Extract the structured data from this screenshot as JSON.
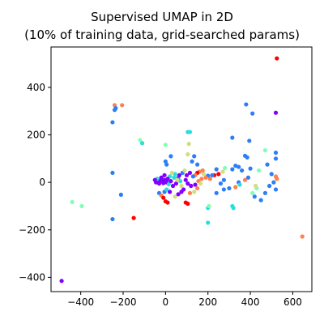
{
  "chart_data": {
    "type": "scatter",
    "title_lines": [
      "Supervised UMAP in 2D",
      "(10% of training data, grid-searched params)"
    ],
    "xlabel": "",
    "ylabel": "",
    "xlim": [
      -540,
      690
    ],
    "ylim": [
      -460,
      570
    ],
    "xticks": [
      -400,
      -200,
      0,
      200,
      400,
      600
    ],
    "yticks": [
      -400,
      -200,
      0,
      200,
      400
    ],
    "grid": false,
    "legend": "none",
    "colors": {
      "purple": "#8000ff",
      "blue": "#2c7ef7",
      "cyan": "#2adddd",
      "mint": "#80ffb4",
      "lime": "#d4dd80",
      "orange": "#ff7f50",
      "red": "#ff0000"
    },
    "points": [
      {
        "x": 525,
        "y": 522,
        "c": "red"
      },
      {
        "x": 520,
        "y": 293,
        "c": "purple"
      },
      {
        "x": 645,
        "y": -228,
        "c": "orange"
      },
      {
        "x": -490,
        "y": -415,
        "c": "purple"
      },
      {
        "x": -240,
        "y": 325,
        "c": "orange"
      },
      {
        "x": -205,
        "y": 325,
        "c": "orange"
      },
      {
        "x": -235,
        "y": 312,
        "c": "blue"
      },
      {
        "x": -240,
        "y": 305,
        "c": "blue"
      },
      {
        "x": -250,
        "y": 253,
        "c": "blue"
      },
      {
        "x": -250,
        "y": 40,
        "c": "blue"
      },
      {
        "x": -210,
        "y": -52,
        "c": "blue"
      },
      {
        "x": -250,
        "y": -155,
        "c": "blue"
      },
      {
        "x": -150,
        "y": -150,
        "c": "red"
      },
      {
        "x": -440,
        "y": -83,
        "c": "mint"
      },
      {
        "x": -395,
        "y": -100,
        "c": "mint"
      },
      {
        "x": -120,
        "y": 178,
        "c": "mint"
      },
      {
        "x": -110,
        "y": 165,
        "c": "cyan"
      },
      {
        "x": 0,
        "y": 158,
        "c": "mint"
      },
      {
        "x": 115,
        "y": 212,
        "c": "cyan"
      },
      {
        "x": 105,
        "y": 212,
        "c": "cyan"
      },
      {
        "x": 110,
        "y": 162,
        "c": "lime"
      },
      {
        "x": 105,
        "y": 118,
        "c": "lime"
      },
      {
        "x": 25,
        "y": 110,
        "c": "blue"
      },
      {
        "x": 135,
        "y": 110,
        "c": "blue"
      },
      {
        "x": 0,
        "y": 88,
        "c": "blue"
      },
      {
        "x": 5,
        "y": 75,
        "c": "blue"
      },
      {
        "x": 150,
        "y": 75,
        "c": "blue"
      },
      {
        "x": 125,
        "y": 88,
        "c": "blue"
      },
      {
        "x": 380,
        "y": 328,
        "c": "blue"
      },
      {
        "x": 410,
        "y": 290,
        "c": "blue"
      },
      {
        "x": 315,
        "y": 188,
        "c": "blue"
      },
      {
        "x": 395,
        "y": 175,
        "c": "blue"
      },
      {
        "x": 375,
        "y": 112,
        "c": "blue"
      },
      {
        "x": 385,
        "y": 105,
        "c": "blue"
      },
      {
        "x": 470,
        "y": 135,
        "c": "mint"
      },
      {
        "x": 520,
        "y": 125,
        "c": "blue"
      },
      {
        "x": 520,
        "y": 100,
        "c": "blue"
      },
      {
        "x": 345,
        "y": 65,
        "c": "blue"
      },
      {
        "x": 315,
        "y": 55,
        "c": "blue"
      },
      {
        "x": 330,
        "y": 70,
        "c": "blue"
      },
      {
        "x": 360,
        "y": 50,
        "c": "blue"
      },
      {
        "x": 400,
        "y": 58,
        "c": "blue"
      },
      {
        "x": 440,
        "y": 50,
        "c": "mint"
      },
      {
        "x": 480,
        "y": 75,
        "c": "blue"
      },
      {
        "x": 500,
        "y": 35,
        "c": "blue"
      },
      {
        "x": 520,
        "y": 25,
        "c": "orange"
      },
      {
        "x": 525,
        "y": 15,
        "c": "orange"
      },
      {
        "x": 510,
        "y": 0,
        "c": "blue"
      },
      {
        "x": 490,
        "y": -15,
        "c": "blue"
      },
      {
        "x": 520,
        "y": -30,
        "c": "blue"
      },
      {
        "x": 470,
        "y": -45,
        "c": "blue"
      },
      {
        "x": 450,
        "y": -75,
        "c": "blue"
      },
      {
        "x": 420,
        "y": -60,
        "c": "blue"
      },
      {
        "x": 410,
        "y": -45,
        "c": "mint"
      },
      {
        "x": 430,
        "y": -25,
        "c": "mint"
      },
      {
        "x": 425,
        "y": -15,
        "c": "lime"
      },
      {
        "x": 390,
        "y": 20,
        "c": "blue"
      },
      {
        "x": 375,
        "y": 10,
        "c": "orange"
      },
      {
        "x": 345,
        "y": 0,
        "c": "blue"
      },
      {
        "x": 350,
        "y": -10,
        "c": "cyan"
      },
      {
        "x": 330,
        "y": -20,
        "c": "orange"
      },
      {
        "x": 300,
        "y": -25,
        "c": "blue"
      },
      {
        "x": 260,
        "y": -5,
        "c": "blue"
      },
      {
        "x": 275,
        "y": 10,
        "c": "blue"
      },
      {
        "x": 270,
        "y": 45,
        "c": "lime"
      },
      {
        "x": 280,
        "y": 60,
        "c": "mint"
      },
      {
        "x": 240,
        "y": 55,
        "c": "blue"
      },
      {
        "x": 250,
        "y": 35,
        "c": "red"
      },
      {
        "x": 230,
        "y": 30,
        "c": "red"
      },
      {
        "x": 220,
        "y": 30,
        "c": "blue"
      },
      {
        "x": 200,
        "y": 28,
        "c": "blue"
      },
      {
        "x": 210,
        "y": 15,
        "c": "orange"
      },
      {
        "x": 190,
        "y": 20,
        "c": "orange"
      },
      {
        "x": 180,
        "y": 35,
        "c": "lime"
      },
      {
        "x": 175,
        "y": 50,
        "c": "orange"
      },
      {
        "x": 160,
        "y": 45,
        "c": "orange"
      },
      {
        "x": 150,
        "y": 40,
        "c": "red"
      },
      {
        "x": 140,
        "y": 30,
        "c": "orange"
      },
      {
        "x": 130,
        "y": 25,
        "c": "blue"
      },
      {
        "x": 115,
        "y": 40,
        "c": "purple"
      },
      {
        "x": 100,
        "y": 30,
        "c": "purple"
      },
      {
        "x": 95,
        "y": 10,
        "c": "purple"
      },
      {
        "x": 105,
        "y": -5,
        "c": "purple"
      },
      {
        "x": 120,
        "y": -15,
        "c": "purple"
      },
      {
        "x": 140,
        "y": -10,
        "c": "purple"
      },
      {
        "x": 155,
        "y": 5,
        "c": "orange"
      },
      {
        "x": 170,
        "y": 15,
        "c": "orange"
      },
      {
        "x": 165,
        "y": -5,
        "c": "lime"
      },
      {
        "x": 150,
        "y": -25,
        "c": "orange"
      },
      {
        "x": 135,
        "y": -40,
        "c": "lime"
      },
      {
        "x": 115,
        "y": -45,
        "c": "orange"
      },
      {
        "x": 85,
        "y": -30,
        "c": "purple"
      },
      {
        "x": 75,
        "y": -15,
        "c": "lime"
      },
      {
        "x": 70,
        "y": 5,
        "c": "cyan"
      },
      {
        "x": 60,
        "y": 20,
        "c": "blue"
      },
      {
        "x": 45,
        "y": 35,
        "c": "cyan"
      },
      {
        "x": 30,
        "y": 40,
        "c": "lime"
      },
      {
        "x": 20,
        "y": 25,
        "c": "cyan"
      },
      {
        "x": 10,
        "y": 15,
        "c": "purple"
      },
      {
        "x": -5,
        "y": 10,
        "c": "purple"
      },
      {
        "x": -15,
        "y": 5,
        "c": "purple"
      },
      {
        "x": -25,
        "y": 8,
        "c": "purple"
      },
      {
        "x": -35,
        "y": 3,
        "c": "purple"
      },
      {
        "x": -45,
        "y": 0,
        "c": "purple"
      },
      {
        "x": -30,
        "y": -5,
        "c": "purple"
      },
      {
        "x": -10,
        "y": -3,
        "c": "purple"
      },
      {
        "x": 5,
        "y": 0,
        "c": "purple"
      },
      {
        "x": 15,
        "y": -8,
        "c": "cyan"
      },
      {
        "x": 25,
        "y": 5,
        "c": "purple"
      },
      {
        "x": -20,
        "y": 20,
        "c": "purple"
      },
      {
        "x": -40,
        "y": 15,
        "c": "cyan"
      },
      {
        "x": -50,
        "y": 10,
        "c": "purple"
      },
      {
        "x": -5,
        "y": 30,
        "c": "purple"
      },
      {
        "x": 35,
        "y": -15,
        "c": "purple"
      },
      {
        "x": 50,
        "y": -5,
        "c": "purple"
      },
      {
        "x": 55,
        "y": 10,
        "c": "lime"
      },
      {
        "x": 40,
        "y": 20,
        "c": "cyan"
      },
      {
        "x": 65,
        "y": 30,
        "c": "purple"
      },
      {
        "x": 80,
        "y": 40,
        "c": "blue"
      },
      {
        "x": 90,
        "y": 50,
        "c": "lime"
      },
      {
        "x": -30,
        "y": -45,
        "c": "blue"
      },
      {
        "x": -20,
        "y": -55,
        "c": "orange"
      },
      {
        "x": -10,
        "y": -65,
        "c": "red"
      },
      {
        "x": 0,
        "y": -80,
        "c": "red"
      },
      {
        "x": 10,
        "y": -85,
        "c": "red"
      },
      {
        "x": -5,
        "y": -40,
        "c": "blue"
      },
      {
        "x": 5,
        "y": -30,
        "c": "cyan"
      },
      {
        "x": 20,
        "y": -40,
        "c": "purple"
      },
      {
        "x": 45,
        "y": -60,
        "c": "lime"
      },
      {
        "x": 60,
        "y": -50,
        "c": "purple"
      },
      {
        "x": 75,
        "y": -40,
        "c": "purple"
      },
      {
        "x": 95,
        "y": -85,
        "c": "red"
      },
      {
        "x": 105,
        "y": -90,
        "c": "red"
      },
      {
        "x": 200,
        "y": -108,
        "c": "cyan"
      },
      {
        "x": 205,
        "y": -100,
        "c": "mint"
      },
      {
        "x": 320,
        "y": -108,
        "c": "cyan"
      },
      {
        "x": 315,
        "y": -100,
        "c": "cyan"
      },
      {
        "x": 200,
        "y": -170,
        "c": "cyan"
      },
      {
        "x": 240,
        "y": -45,
        "c": "blue"
      },
      {
        "x": 275,
        "y": -30,
        "c": "blue"
      }
    ]
  }
}
